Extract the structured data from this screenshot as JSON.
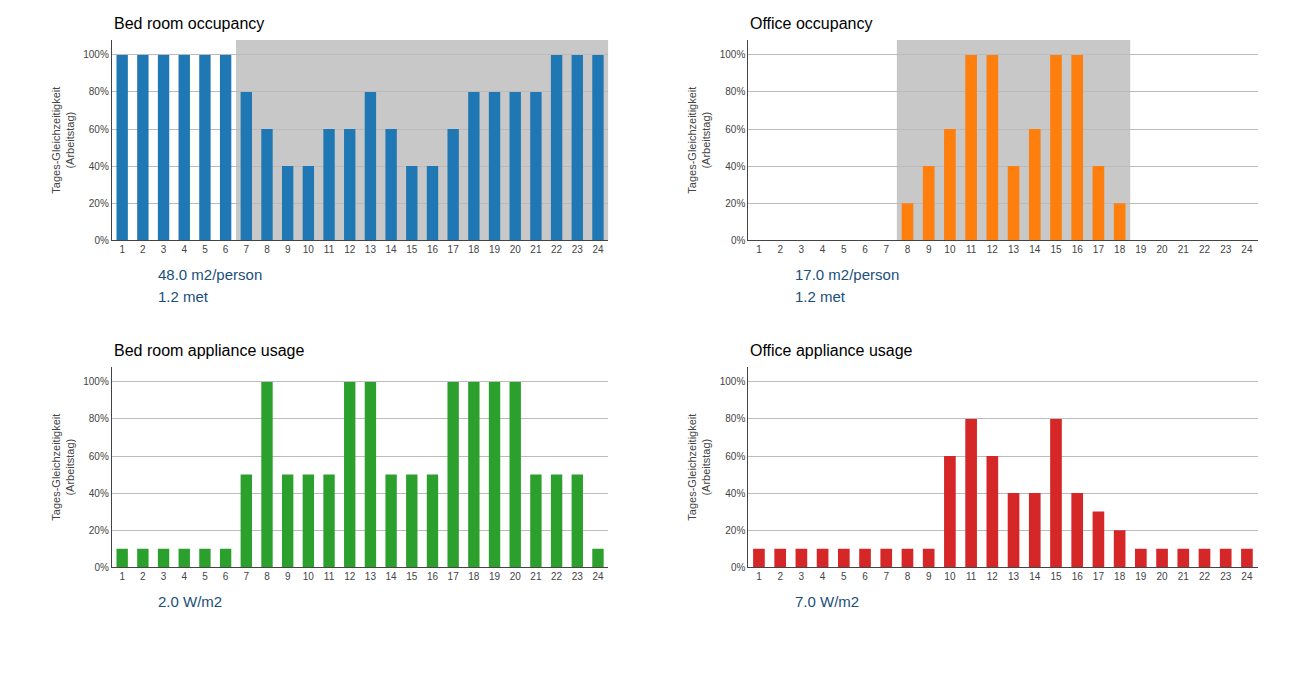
{
  "chart_data": [
    {
      "type": "bar",
      "title": "Bed room occupancy",
      "categories": [
        "1",
        "2",
        "3",
        "4",
        "5",
        "6",
        "7",
        "8",
        "9",
        "10",
        "11",
        "12",
        "13",
        "14",
        "15",
        "16",
        "17",
        "18",
        "19",
        "20",
        "21",
        "22",
        "23",
        "24"
      ],
      "values": [
        100,
        100,
        100,
        100,
        100,
        100,
        80,
        60,
        40,
        40,
        60,
        60,
        80,
        60,
        40,
        40,
        60,
        80,
        80,
        80,
        80,
        100,
        100,
        100
      ],
      "ylabel": "Tages-Gleichzeitigkeit\n(Arbeitstag)",
      "ylim": [
        0,
        108
      ],
      "yticks": [
        {
          "value": 0,
          "label": "0%"
        },
        {
          "value": 20,
          "label": "20%"
        },
        {
          "value": 40,
          "label": "40%"
        },
        {
          "value": 60,
          "label": "60%"
        },
        {
          "value": 80,
          "label": "80%"
        },
        {
          "value": 100,
          "label": "100%"
        }
      ],
      "grid": true,
      "annotations": [
        "48.0 m2/person",
        "1.2 met"
      ],
      "shaded": {
        "from": "7",
        "to": "24",
        "color": "#c8c8c8"
      }
    },
    {
      "type": "bar",
      "title": "Office occupancy",
      "categories": [
        "1",
        "2",
        "3",
        "4",
        "5",
        "6",
        "7",
        "8",
        "9",
        "10",
        "11",
        "12",
        "13",
        "14",
        "15",
        "16",
        "17",
        "18",
        "19",
        "20",
        "21",
        "22",
        "23",
        "24"
      ],
      "values": [
        0,
        0,
        0,
        0,
        0,
        0,
        0,
        20,
        40,
        60,
        100,
        100,
        40,
        60,
        100,
        100,
        40,
        20,
        0,
        0,
        0,
        0,
        0,
        0
      ],
      "ylabel": "Tages-Gleichzeitigkeit\n(Arbeitstag)",
      "ylim": [
        0,
        108
      ],
      "yticks": [
        {
          "value": 0,
          "label": "0%"
        },
        {
          "value": 20,
          "label": "20%"
        },
        {
          "value": 40,
          "label": "40%"
        },
        {
          "value": 60,
          "label": "60%"
        },
        {
          "value": 80,
          "label": "80%"
        },
        {
          "value": 100,
          "label": "100%"
        }
      ],
      "grid": true,
      "annotations": [
        "17.0 m2/person",
        "1.2 met"
      ],
      "shaded": {
        "from": "8",
        "to": "18",
        "color": "#c8c8c8"
      }
    },
    {
      "type": "bar",
      "title": "Bed room appliance usage",
      "categories": [
        "1",
        "2",
        "3",
        "4",
        "5",
        "6",
        "7",
        "8",
        "9",
        "10",
        "11",
        "12",
        "13",
        "14",
        "15",
        "16",
        "17",
        "18",
        "19",
        "20",
        "21",
        "22",
        "23",
        "24"
      ],
      "values": [
        10,
        10,
        10,
        10,
        10,
        10,
        50,
        100,
        50,
        50,
        50,
        100,
        100,
        50,
        50,
        50,
        100,
        100,
        100,
        100,
        50,
        50,
        50,
        10
      ],
      "ylabel": "Tages-Gleichzeitigkeit\n(Arbeitstag)",
      "ylim": [
        0,
        108
      ],
      "yticks": [
        {
          "value": 0,
          "label": "0%"
        },
        {
          "value": 20,
          "label": "20%"
        },
        {
          "value": 40,
          "label": "40%"
        },
        {
          "value": 60,
          "label": "60%"
        },
        {
          "value": 80,
          "label": "80%"
        },
        {
          "value": 100,
          "label": "100%"
        }
      ],
      "grid": true,
      "annotations": [
        "2.0 W/m2"
      ]
    },
    {
      "type": "bar",
      "title": "Office appliance usage",
      "categories": [
        "1",
        "2",
        "3",
        "4",
        "5",
        "6",
        "7",
        "8",
        "9",
        "10",
        "11",
        "12",
        "13",
        "14",
        "15",
        "16",
        "17",
        "18",
        "19",
        "20",
        "21",
        "22",
        "23",
        "24"
      ],
      "values": [
        10,
        10,
        10,
        10,
        10,
        10,
        10,
        10,
        10,
        60,
        80,
        60,
        40,
        40,
        80,
        40,
        30,
        20,
        10,
        10,
        10,
        10,
        10,
        10
      ],
      "ylabel": "Tages-Gleichzeitigkeit\n(Arbeitstag)",
      "ylim": [
        0,
        108
      ],
      "yticks": [
        {
          "value": 0,
          "label": "0%"
        },
        {
          "value": 20,
          "label": "20%"
        },
        {
          "value": 40,
          "label": "40%"
        },
        {
          "value": 60,
          "label": "60%"
        },
        {
          "value": 80,
          "label": "80%"
        },
        {
          "value": 100,
          "label": "100%"
        }
      ],
      "grid": true,
      "annotations": [
        "7.0 W/m2"
      ]
    }
  ]
}
